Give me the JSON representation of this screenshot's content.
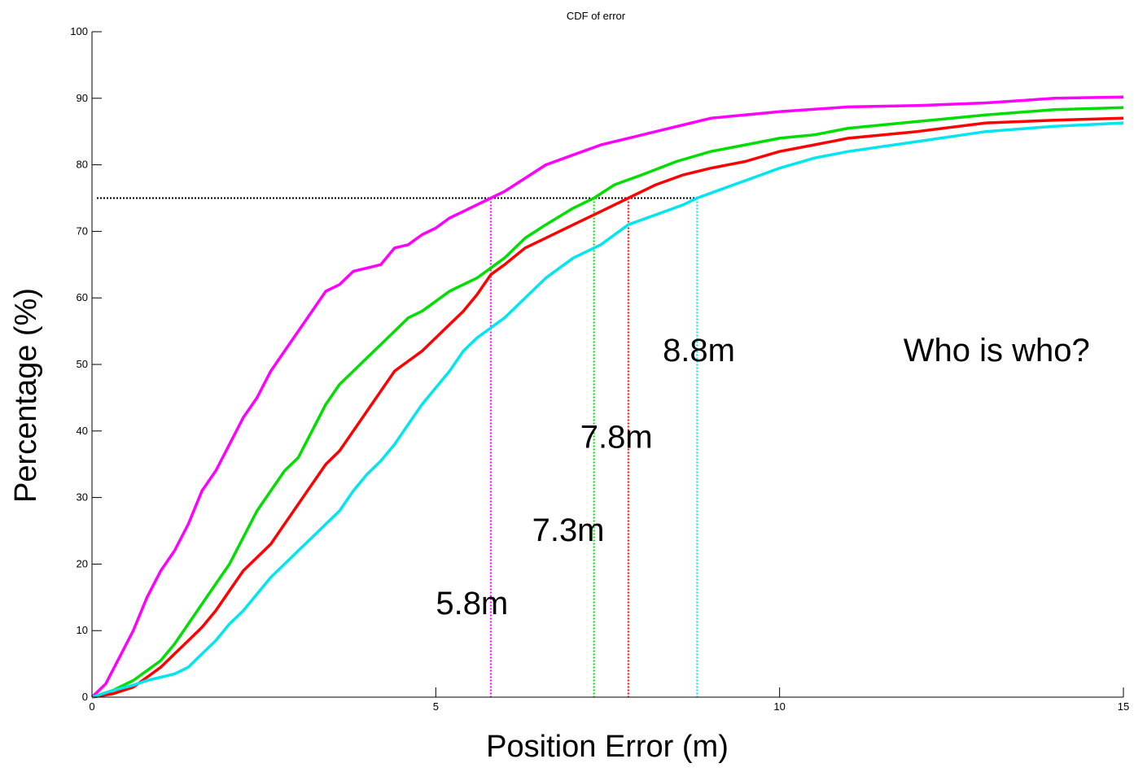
{
  "chart_data": {
    "type": "line",
    "title": "CDF of error",
    "xlabel": "Position Error (m)",
    "ylabel": "Percentage (%)",
    "xlim": [
      0,
      15
    ],
    "ylim": [
      0,
      100
    ],
    "xticks": [
      0,
      5,
      10,
      15
    ],
    "yticks": [
      0,
      10,
      20,
      30,
      40,
      50,
      60,
      70,
      80,
      90,
      100
    ],
    "grid": false,
    "series": [
      {
        "color": "#ff00ff",
        "x": [
          0,
          0.2,
          0.4,
          0.6,
          0.8,
          1.0,
          1.2,
          1.4,
          1.6,
          1.8,
          2.0,
          2.2,
          2.4,
          2.6,
          2.8,
          3.0,
          3.2,
          3.4,
          3.6,
          3.8,
          4.0,
          4.2,
          4.4,
          4.6,
          4.8,
          5.0,
          5.2,
          5.4,
          5.6,
          5.8,
          6.0,
          6.3,
          6.6,
          7.0,
          7.4,
          7.8,
          8.2,
          8.6,
          9.0,
          9.5,
          10.0,
          11.0,
          12.0,
          13.0,
          14.0,
          15.0
        ],
        "y": [
          0,
          2,
          6,
          10,
          15,
          19,
          22,
          26,
          31,
          34,
          38,
          42,
          45,
          49,
          52,
          55,
          58,
          61,
          62,
          64,
          64.5,
          65,
          67.5,
          68,
          69.5,
          70.5,
          72,
          73,
          74,
          75,
          76,
          78,
          80,
          81.5,
          83,
          84,
          85,
          86,
          87,
          87.5,
          88,
          88.7,
          88.9,
          89.3,
          90,
          90.2
        ]
      },
      {
        "color": "#00dd00",
        "x": [
          0,
          0.3,
          0.6,
          0.8,
          1.0,
          1.2,
          1.4,
          1.6,
          1.8,
          2.0,
          2.2,
          2.4,
          2.6,
          2.8,
          3.0,
          3.2,
          3.4,
          3.6,
          3.8,
          4.0,
          4.2,
          4.4,
          4.6,
          4.8,
          5.0,
          5.2,
          5.4,
          5.6,
          5.8,
          6.0,
          6.3,
          6.6,
          7.0,
          7.3,
          7.6,
          8.0,
          8.5,
          9.0,
          9.5,
          10.0,
          10.5,
          11.0,
          12.0,
          13.0,
          14.0,
          15.0
        ],
        "y": [
          0,
          1,
          2.5,
          4,
          5.5,
          8,
          11,
          14,
          17,
          20,
          24,
          28,
          31,
          34,
          36,
          40,
          44,
          47,
          49,
          51,
          53,
          55,
          57,
          58,
          59.5,
          61,
          62,
          63,
          64.5,
          66,
          69,
          71,
          73.5,
          75,
          77,
          78.5,
          80.5,
          82,
          83,
          84,
          84.5,
          85.5,
          86.5,
          87.5,
          88.3,
          88.6
        ]
      },
      {
        "color": "#ff0000",
        "x": [
          0,
          0.3,
          0.6,
          0.8,
          1.0,
          1.2,
          1.4,
          1.6,
          1.8,
          2.0,
          2.2,
          2.4,
          2.6,
          2.8,
          3.0,
          3.2,
          3.4,
          3.6,
          3.8,
          4.0,
          4.2,
          4.4,
          4.6,
          4.8,
          5.0,
          5.2,
          5.4,
          5.6,
          5.8,
          6.0,
          6.3,
          6.6,
          7.0,
          7.4,
          7.8,
          8.2,
          8.6,
          9.0,
          9.5,
          10.0,
          10.5,
          11.0,
          12.0,
          13.0,
          14.0,
          15.0
        ],
        "y": [
          0,
          0.5,
          1.5,
          3,
          4.5,
          6.5,
          8.5,
          10.5,
          13,
          16,
          19,
          21,
          23,
          26,
          29,
          32,
          35,
          37,
          40,
          43,
          46,
          49,
          50.5,
          52,
          54,
          56,
          58,
          60.5,
          63.5,
          65,
          67.5,
          69,
          71,
          73,
          75,
          77,
          78.5,
          79.5,
          80.5,
          82,
          83,
          84,
          85,
          86.3,
          86.7,
          87
        ]
      },
      {
        "color": "#00e5ee",
        "x": [
          0,
          0.3,
          0.6,
          0.8,
          1.0,
          1.2,
          1.4,
          1.6,
          1.8,
          2.0,
          2.2,
          2.4,
          2.6,
          2.8,
          3.0,
          3.2,
          3.4,
          3.6,
          3.8,
          4.0,
          4.2,
          4.4,
          4.6,
          4.8,
          5.0,
          5.2,
          5.4,
          5.6,
          5.8,
          6.0,
          6.3,
          6.6,
          7.0,
          7.4,
          7.8,
          8.2,
          8.6,
          8.8,
          9.2,
          9.6,
          10.0,
          10.5,
          11.0,
          12.0,
          13.0,
          14.0,
          15.0
        ],
        "y": [
          0,
          1,
          1.8,
          2.5,
          3,
          3.5,
          4.5,
          6.5,
          8.5,
          11,
          13,
          15.5,
          18,
          20,
          22,
          24,
          26,
          28,
          31,
          33.5,
          35.5,
          38,
          41,
          44,
          46.5,
          49,
          52,
          54,
          55.5,
          57,
          60,
          63,
          66,
          68,
          71,
          72.5,
          74,
          75,
          76.5,
          78,
          79.5,
          81,
          82,
          83.5,
          85,
          85.8,
          86.3
        ]
      }
    ],
    "reference_lines": {
      "horizontal": {
        "y": 75,
        "x_from": 0,
        "x_to": 8.8,
        "color": "#000000"
      },
      "vertical": [
        {
          "x": 5.8,
          "color": "#ff00ff"
        },
        {
          "x": 7.3,
          "color": "#00dd00"
        },
        {
          "x": 7.8,
          "color": "#ff0000"
        },
        {
          "x": 8.8,
          "color": "#00e5ee"
        }
      ]
    },
    "annotations": [
      {
        "text": "5.8m",
        "x": 5.0,
        "y": 12.5
      },
      {
        "text": "7.3m",
        "x": 6.4,
        "y": 23.5
      },
      {
        "text": "7.8m",
        "x": 7.1,
        "y": 37.5
      },
      {
        "text": "8.8m",
        "x": 8.3,
        "y": 50.5
      },
      {
        "text": "Who is who?",
        "x": 11.8,
        "y": 50.5
      }
    ]
  }
}
